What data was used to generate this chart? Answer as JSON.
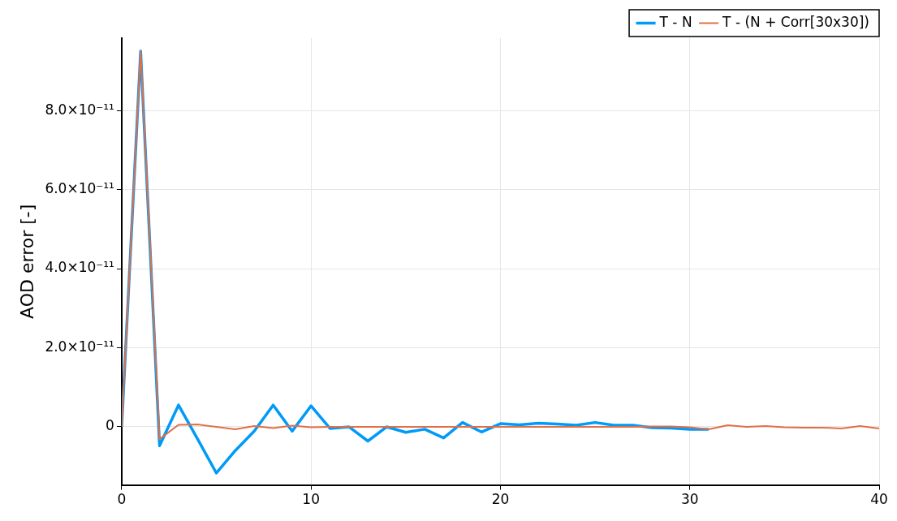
{
  "chart_data": {
    "type": "line",
    "ylabel": "AOD error [-]",
    "x": [
      0,
      1,
      2,
      3,
      4,
      5,
      6,
      7,
      8,
      9,
      10,
      11,
      12,
      13,
      14,
      15,
      16,
      17,
      18,
      19,
      20,
      21,
      22,
      23,
      24,
      25,
      26,
      27,
      28,
      29,
      30,
      31,
      32,
      33,
      34,
      35,
      36,
      37,
      38,
      39,
      40
    ],
    "series": [
      {
        "name": "T - N",
        "color": "#009af9",
        "values": [
          0,
          9.5e-11,
          -4.8e-12,
          5.5e-12,
          -3e-12,
          -1.17e-11,
          -6e-12,
          -1.1e-12,
          5.5e-12,
          -1.1e-12,
          5.3e-12,
          -4e-13,
          0,
          -3.6e-12,
          0,
          -1.4e-12,
          -6e-13,
          -2.8e-12,
          1.1e-12,
          -1.3e-12,
          8e-13,
          5e-13,
          9e-13,
          7e-13,
          4e-13,
          1.1e-12,
          4e-13,
          4e-13,
          -2e-13,
          -3e-13,
          -6e-13,
          -6e-13,
          null,
          null,
          null,
          null,
          null,
          null,
          null,
          null,
          null
        ]
      },
      {
        "name": "T - (N + Corr[30x30])",
        "color": "#e26f46",
        "values": [
          0,
          9.5e-11,
          -3.1e-12,
          5e-13,
          6e-13,
          0,
          -6e-13,
          2e-13,
          -3e-13,
          3e-13,
          -1e-13,
          0,
          0,
          0,
          0,
          0,
          0,
          0,
          0,
          0,
          0,
          0,
          0,
          0,
          0,
          0,
          0,
          0,
          1e-13,
          1e-13,
          -1e-13,
          -6e-13,
          4e-13,
          0,
          2e-13,
          -1e-13,
          -2e-13,
          -2e-13,
          -4e-13,
          2e-13,
          -4e-13
        ]
      }
    ],
    "xlim": [
      0,
      40
    ],
    "xticks": [
      0,
      10,
      20,
      30,
      40
    ],
    "ylim": [
      -1.47e-11,
      9.83e-11
    ],
    "yticks": [
      {
        "value": 0,
        "label": "0"
      },
      {
        "value": 2e-11,
        "label": "2.0×10⁻¹¹"
      },
      {
        "value": 4e-11,
        "label": "4.0×10⁻¹¹"
      },
      {
        "value": 6e-11,
        "label": "6.0×10⁻¹¹"
      },
      {
        "value": 8e-11,
        "label": "8.0×10⁻¹¹"
      }
    ],
    "grid": true,
    "legend": "top right",
    "marker": "none",
    "line_style": "solid"
  }
}
